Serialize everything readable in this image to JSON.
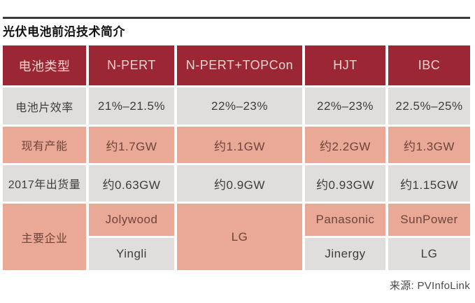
{
  "title": "光伏电池前沿技术简介",
  "source": "来源: PVInfoLink",
  "colors": {
    "header_bg": "#9a2733",
    "header_text": "#f2d4d1",
    "gray_row_bg": "#dfdedc",
    "gray_row_text": "#3d3d3d",
    "salmon_row_bg": "#e9a996",
    "salmon_row_text": "#6e453b",
    "top_rule": "#3b3b3b",
    "page_bg": "#ffffff"
  },
  "chart_data": {
    "type": "table",
    "title": "光伏电池前沿技术简介",
    "columns": [
      "电池类型",
      "N-PERT",
      "N-PERT+TOPCon",
      "HJT",
      "IBC"
    ],
    "rows": [
      [
        "电池片效率",
        "21%–21.5%",
        "22%–23%",
        "22%–23%",
        "22.5%–25%"
      ],
      [
        "现有产能",
        "约1.7GW",
        "约1.1GW",
        "约2.2GW",
        "约1.3GW"
      ],
      [
        "2017年出货量",
        "约0.63GW",
        "约0.9GW",
        "约0.93GW",
        "约1.15GW"
      ],
      [
        "主要企业",
        "Jolywood / Yingli",
        "LG",
        "Panasonic / Jinergy",
        "SunPower / LG"
      ]
    ],
    "source": "来源: PVInfoLink",
    "layout_hints": "header row dark red; label column left; rows alternate gray and salmon; 主要企业 row split into two sub-rows except LG cell which spans both"
  },
  "companies": {
    "npert_top": "Jolywood",
    "npert_bottom": "Yingli",
    "topcon_span": "LG",
    "hjt_top": "Panasonic",
    "hjt_bottom": "Jinergy",
    "ibc_top": "SunPower",
    "ibc_bottom": "LG"
  }
}
